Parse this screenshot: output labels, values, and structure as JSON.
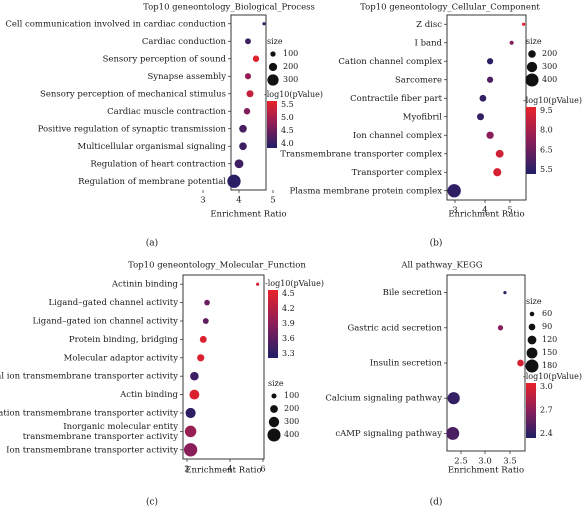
{
  "colors": {
    "low": "#1f1f66",
    "mid": "#8a1e5a",
    "high": "#e8222a",
    "frame": "#222222"
  },
  "size_legend_title": "size",
  "color_legend_title": "-log10(pValue)",
  "chart_data": [
    {
      "type": "scatter",
      "panel_label": "(a)",
      "title": "Top10 geneontology_Biological_Process",
      "xlabel": "Enrichment Ratio",
      "ylabel": "",
      "xlim": [
        2.1,
        5.6
      ],
      "xticks": [
        "3",
        "4",
        "5"
      ],
      "size_legend": [
        "100",
        "200",
        "300"
      ],
      "color_legend": [
        "5.5",
        "5.0",
        "4.5",
        "4.0"
      ],
      "color_range": [
        3.7,
        5.7
      ],
      "size_range": [
        30,
        380
      ],
      "points": [
        {
          "term": "Cell communication involved in cardiac conduction",
          "x": 5.4,
          "logp": 4.0,
          "size": 30
        },
        {
          "term": "Cardiac conduction",
          "x": 3.8,
          "logp": 4.0,
          "size": 120
        },
        {
          "term": "Sensory perception of sound",
          "x": 4.6,
          "logp": 5.6,
          "size": 140
        },
        {
          "term": "Synapse assembly",
          "x": 3.8,
          "logp": 4.8,
          "size": 130
        },
        {
          "term": "Sensory perception of mechanical stimulus",
          "x": 4.0,
          "logp": 5.3,
          "size": 160
        },
        {
          "term": "Cardiac muscle contraction",
          "x": 3.7,
          "logp": 4.6,
          "size": 140
        },
        {
          "term": "Positive regulation of synaptic transmission",
          "x": 3.3,
          "logp": 4.1,
          "size": 180
        },
        {
          "term": "Multicellular organismal signaling",
          "x": 3.3,
          "logp": 4.0,
          "size": 180
        },
        {
          "term": "Regulation of heart contraction",
          "x": 2.9,
          "logp": 4.0,
          "size": 220
        },
        {
          "term": "Regulation of membrane potential",
          "x": 2.4,
          "logp": 3.8,
          "size": 370
        }
      ]
    },
    {
      "type": "scatter",
      "panel_label": "(b)",
      "title": "Top10 geneontology_Cellular_Component",
      "xlabel": "Enrichment Ratio",
      "ylabel": "",
      "xlim": [
        2.4,
        5.7
      ],
      "xticks": [
        "3",
        "4",
        "5"
      ],
      "size_legend": [
        "200",
        "300",
        "400"
      ],
      "color_legend": [
        "9.5",
        "8.0",
        "6.5",
        "5.5"
      ],
      "color_range": [
        5.2,
        9.6
      ],
      "size_range": [
        40,
        420
      ],
      "points": [
        {
          "term": "Z disc",
          "x": 5.6,
          "logp": 9.5,
          "size": 40
        },
        {
          "term": "I band",
          "x": 5.1,
          "logp": 7.2,
          "size": 70
        },
        {
          "term": "Cation channel complex",
          "x": 4.2,
          "logp": 5.4,
          "size": 150
        },
        {
          "term": "Sarcomere",
          "x": 4.2,
          "logp": 6.2,
          "size": 150
        },
        {
          "term": "Contractile fiber part",
          "x": 3.9,
          "logp": 5.6,
          "size": 170
        },
        {
          "term": "Myofibril",
          "x": 3.8,
          "logp": 5.7,
          "size": 180
        },
        {
          "term": "Ion channel complex",
          "x": 4.2,
          "logp": 7.4,
          "size": 190
        },
        {
          "term": "Transmembrane transporter complex",
          "x": 4.6,
          "logp": 9.0,
          "size": 210
        },
        {
          "term": "Transporter complex",
          "x": 4.5,
          "logp": 9.2,
          "size": 220
        },
        {
          "term": "Plasma membrane protein complex",
          "x": 2.7,
          "logp": 5.5,
          "size": 410
        }
      ]
    },
    {
      "type": "scatter",
      "panel_label": "(c)",
      "title": "Top10 geneontology_Molecular_Function",
      "xlabel": "Enrichment Ratio",
      "ylabel": "",
      "xlim": [
        1.6,
        8.0
      ],
      "xticks": [
        "2",
        "4",
        "6"
      ],
      "size_legend": [
        "100",
        "200",
        "300",
        "400"
      ],
      "color_legend": [
        "4.5",
        "4.2",
        "3.9",
        "3.6",
        "3.3"
      ],
      "color_range": [
        3.2,
        4.6
      ],
      "size_range": [
        30,
        420
      ],
      "points": [
        {
          "term": "Actinin binding",
          "x": 7.5,
          "logp": 4.4,
          "size": 30
        },
        {
          "term": "Ligand–gated channel activity",
          "x": 3.5,
          "logp": 3.7,
          "size": 120
        },
        {
          "term": "Ligand–gated ion channel activity",
          "x": 3.4,
          "logp": 3.6,
          "size": 130
        },
        {
          "term": "Protein binding, bridging",
          "x": 3.2,
          "logp": 4.5,
          "size": 170
        },
        {
          "term": "Molecular adaptor activity",
          "x": 3.0,
          "logp": 4.5,
          "size": 180
        },
        {
          "term": "Metal ion transmembrane transporter activity",
          "x": 2.5,
          "logp": 3.4,
          "size": 230
        },
        {
          "term": "Actin binding",
          "x": 2.5,
          "logp": 4.5,
          "size": 280
        },
        {
          "term": "Cation transmembrane transporter activity",
          "x": 2.2,
          "logp": 3.3,
          "size": 290
        },
        {
          "term": "Inorganic molecular entity transmembrane transporter activity",
          "x": 2.2,
          "logp": 4.0,
          "size": 340
        },
        {
          "term": "Ion transmembrane transporter activity",
          "x": 2.2,
          "logp": 3.9,
          "size": 410
        }
      ]
    },
    {
      "type": "scatter",
      "panel_label": "(d)",
      "title": "All pathway_KEGG",
      "xlabel": "Enrichment Ratio",
      "ylabel": "",
      "xlim": [
        2.15,
        3.9
      ],
      "xticks": [
        "2.5",
        "3.0",
        "3.5"
      ],
      "size_legend": [
        "60",
        "90",
        "120",
        "150",
        "180"
      ],
      "color_legend": [
        "3.0",
        "2.7",
        "2.4"
      ],
      "color_range": [
        2.2,
        3.2
      ],
      "size_range": [
        40,
        190
      ],
      "points": [
        {
          "term": "Bile secretion",
          "x": 3.45,
          "logp": 2.3,
          "size": 40
        },
        {
          "term": "Gastric acid secretion",
          "x": 3.35,
          "logp": 2.7,
          "size": 70
        },
        {
          "term": "Insulin secretion",
          "x": 3.8,
          "logp": 3.1,
          "size": 90
        },
        {
          "term": "Calcium signaling pathway",
          "x": 2.3,
          "logp": 2.3,
          "size": 170
        },
        {
          "term": "cAMP signaling pathway",
          "x": 2.28,
          "logp": 2.4,
          "size": 180
        }
      ]
    }
  ]
}
